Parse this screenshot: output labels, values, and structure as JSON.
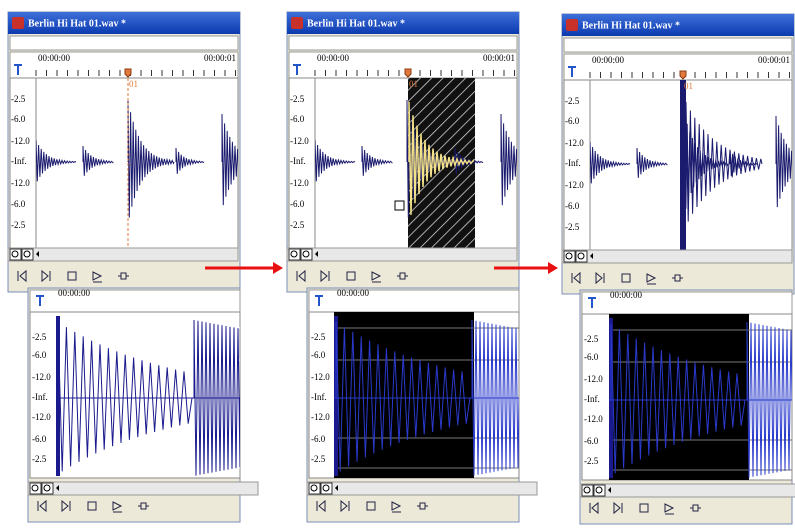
{
  "panels": [
    {
      "title": "Berlin Hi Hat 01.wav *",
      "ruler_start": "00:00:00",
      "ruler_end": "00:00:01",
      "marker": "01",
      "db_labels": [
        "-2.5",
        "-6.0",
        "-12.0",
        "-Inf.",
        "-12.0",
        "-6.0",
        "-2.5"
      ]
    },
    {
      "title": "Berlin Hi Hat 01.wav *",
      "ruler_start": "00:00:00",
      "ruler_end": "00:00:01",
      "marker": "01",
      "db_labels": [
        "-2.5",
        "-6.0",
        "-12.0",
        "-Inf.",
        "-12.0",
        "-6.0",
        "-2.5"
      ]
    },
    {
      "title": "Berlin Hi Hat 01.wav *",
      "ruler_start": "00:00:00",
      "ruler_end": "00:00:01",
      "marker": "01",
      "db_labels": [
        "-2.5",
        "-6.0",
        "-12.0",
        "-Inf.",
        "-12.0",
        "-6.0",
        "-2.5"
      ]
    }
  ],
  "zoom_panels": [
    {
      "ruler_start": "00:00:00",
      "db_labels": [
        "-2.5",
        "-6.0",
        "-12.0",
        "-Inf.",
        "-12.0",
        "-6.0",
        "-2.5"
      ]
    },
    {
      "ruler_start": "00:00:00",
      "db_labels": [
        "-2.5",
        "-6.0",
        "-12.0",
        "-Inf.",
        "-12.0",
        "-6.0",
        "-2.5"
      ]
    },
    {
      "ruler_start": "00:00:00",
      "db_labels": [
        "-2.5",
        "-6.0",
        "-12.0",
        "-Inf.",
        "-12.0",
        "-6.0",
        "-2.5"
      ]
    }
  ]
}
